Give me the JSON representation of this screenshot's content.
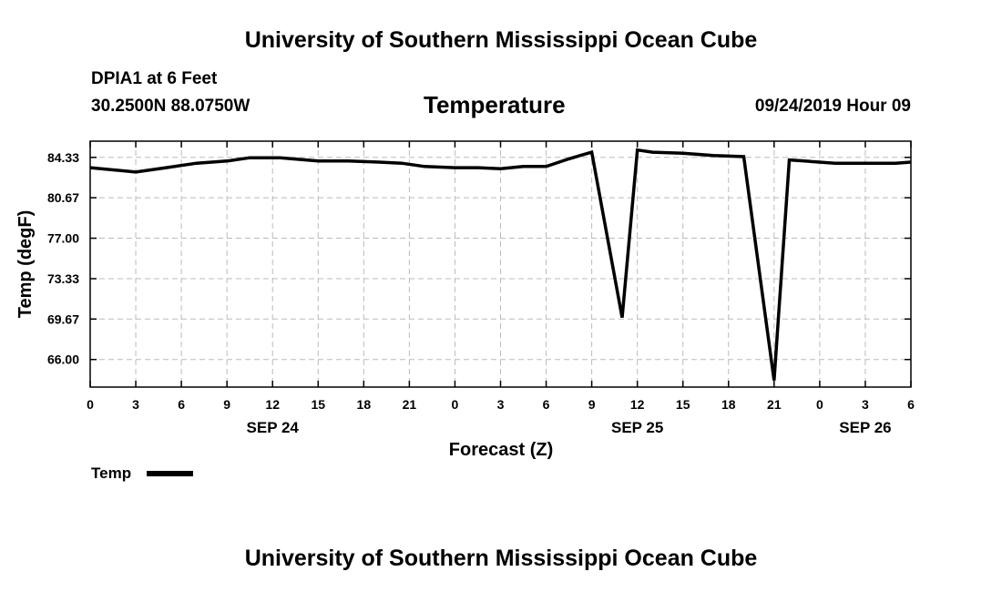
{
  "header": {
    "title": "University of Southern Mississippi Ocean Cube",
    "station": "DPIA1 at 6 Feet",
    "coords": "30.2500N 88.0750W",
    "datetime": "09/24/2019 Hour 09"
  },
  "footer": {
    "title": "University of Southern Mississippi Ocean Cube"
  },
  "chart_data": {
    "type": "line",
    "title": "Temperature",
    "xlabel": "Forecast (Z)",
    "ylabel": "Temp (degF)",
    "x_range_hours": [
      0,
      54
    ],
    "ylim": [
      63.5,
      85.8
    ],
    "yticks": [
      66.0,
      69.67,
      73.33,
      77.0,
      80.67,
      84.33
    ],
    "ytick_labels": [
      "66.00",
      "69.67",
      "73.33",
      "77.00",
      "80.67",
      "84.33"
    ],
    "xticks_hours": [
      0,
      3,
      6,
      9,
      12,
      15,
      18,
      21,
      24,
      27,
      30,
      33,
      36,
      39,
      42,
      45,
      48,
      51,
      54
    ],
    "xtick_labels": [
      "0",
      "3",
      "6",
      "9",
      "12",
      "15",
      "18",
      "21",
      "0",
      "3",
      "6",
      "9",
      "12",
      "15",
      "18",
      "21",
      "0",
      "3",
      "6"
    ],
    "date_labels": [
      {
        "label": "SEP 24",
        "hour": 12
      },
      {
        "label": "SEP 25",
        "hour": 36
      },
      {
        "label": "SEP 26",
        "hour": 51
      }
    ],
    "grid": true,
    "legend": {
      "position": "bottom-left",
      "entries": [
        "Temp"
      ]
    },
    "series": [
      {
        "name": "Temp",
        "x": [
          0,
          3,
          5,
          7,
          9,
          10.5,
          12.5,
          15,
          17,
          19,
          20.5,
          22,
          24,
          25.5,
          27,
          28.5,
          30,
          31.5,
          33,
          35,
          36,
          37,
          39,
          41,
          43,
          45,
          46,
          47,
          49,
          51,
          53,
          54
        ],
        "y": [
          83.4,
          83.0,
          83.4,
          83.8,
          84.0,
          84.3,
          84.3,
          84.0,
          84.0,
          83.9,
          83.8,
          83.5,
          83.4,
          83.4,
          83.3,
          83.5,
          83.5,
          84.2,
          84.8,
          69.8,
          85.0,
          84.8,
          84.7,
          84.5,
          84.4,
          64.1,
          84.1,
          84.0,
          83.8,
          83.8,
          83.8,
          83.9
        ]
      }
    ]
  }
}
